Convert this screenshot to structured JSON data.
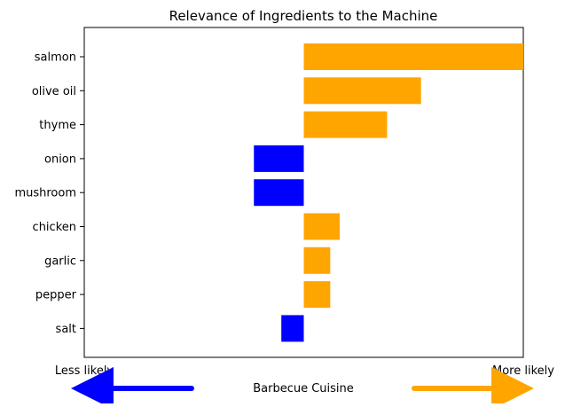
{
  "chart_data": {
    "type": "bar",
    "orientation": "horizontal",
    "title": "Relevance of Ingredients to the Machine",
    "categories": [
      "salmon",
      "olive oil",
      "thyme",
      "onion",
      "mushroom",
      "chicken",
      "garlic",
      "pepper",
      "salt"
    ],
    "values": [
      0.44,
      0.235,
      0.167,
      -0.1,
      -0.1,
      0.072,
      0.053,
      0.053,
      -0.045
    ],
    "xlim": [
      -0.44,
      0.44
    ],
    "colors": {
      "positive": "#ffa500",
      "negative": "#0000ff"
    },
    "xlabel": "Barbecue Cuisine",
    "x_axis_left_label": "Less likely",
    "x_axis_right_label": "More likely",
    "grid": false,
    "legend": "none"
  }
}
